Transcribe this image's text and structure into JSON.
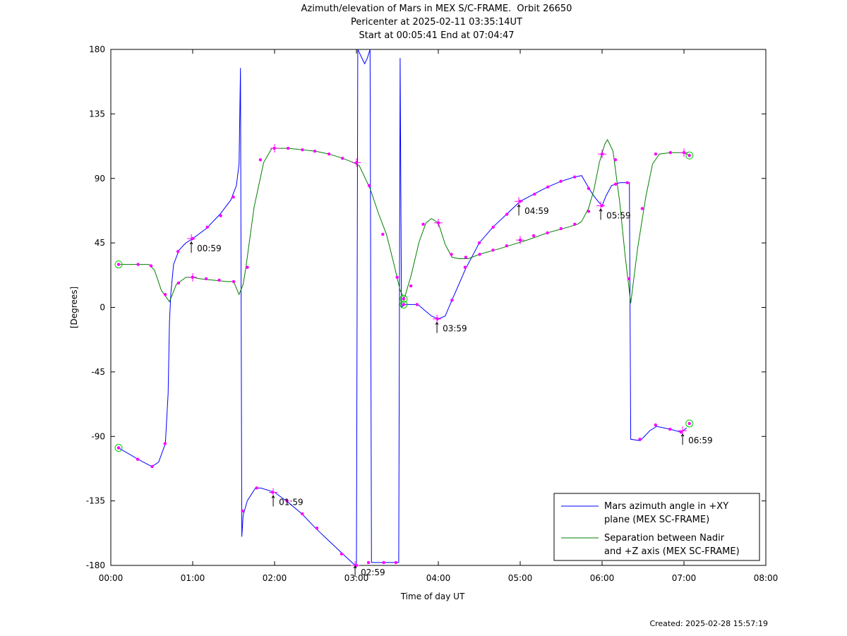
{
  "chart_data": {
    "type": "line",
    "title_lines": [
      "Azimuth/elevation of Mars in MEX S/C-FRAME.  Orbit 26650",
      "Pericenter at 2025-02-11 03:35:14UT",
      "Start at 00:05:41 End at 07:04:47"
    ],
    "xlabel": "Time of day UT",
    "ylabel": "[Degrees]",
    "xlim": [
      0,
      480
    ],
    "ylim": [
      -180,
      180
    ],
    "x_ticks": [
      {
        "v": 0,
        "label": "00:00"
      },
      {
        "v": 60,
        "label": "01:00"
      },
      {
        "v": 120,
        "label": "02:00"
      },
      {
        "v": 180,
        "label": "03:00"
      },
      {
        "v": 240,
        "label": "04:00"
      },
      {
        "v": 300,
        "label": "05:00"
      },
      {
        "v": 360,
        "label": "06:00"
      },
      {
        "v": 420,
        "label": "07:00"
      },
      {
        "v": 480,
        "label": "08:00"
      }
    ],
    "y_ticks": [
      {
        "v": 180,
        "label": "180"
      },
      {
        "v": 135,
        "label": "135"
      },
      {
        "v": 90,
        "label": "90"
      },
      {
        "v": 45,
        "label": "45"
      },
      {
        "v": 0,
        "label": "0"
      },
      {
        "v": -45,
        "label": "-45"
      },
      {
        "v": -90,
        "label": "-90"
      },
      {
        "v": -135,
        "label": "-135"
      },
      {
        "v": -180,
        "label": "-180"
      }
    ],
    "legend_position": "bottom-right",
    "series": [
      {
        "name": "Mars azimuth angle in +XY plane (MEX SC-FRAME)",
        "legend_lines": [
          "Mars azimuth angle in +XY",
          "plane (MEX SC-FRAME)"
        ],
        "color": "#0000ff",
        "points": [
          [
            5.7,
            -98
          ],
          [
            20,
            -106
          ],
          [
            30,
            -111
          ],
          [
            35,
            -108
          ],
          [
            40,
            -95
          ],
          [
            42,
            -60
          ],
          [
            43,
            -10
          ],
          [
            44,
            10
          ],
          [
            46,
            30
          ],
          [
            50,
            40
          ],
          [
            55,
            45
          ],
          [
            60,
            48
          ],
          [
            70,
            55
          ],
          [
            80,
            65
          ],
          [
            88,
            75
          ],
          [
            92,
            85
          ],
          [
            94,
            100
          ],
          [
            95,
            167
          ],
          [
            96,
            -160
          ],
          [
            97,
            -145
          ],
          [
            100,
            -135
          ],
          [
            106,
            -126
          ],
          [
            110,
            -126
          ],
          [
            120,
            -129
          ],
          [
            130,
            -136
          ],
          [
            140,
            -144
          ],
          [
            150,
            -154
          ],
          [
            160,
            -163
          ],
          [
            170,
            -172
          ],
          [
            179,
            -180
          ],
          [
            180,
            -180
          ],
          [
            181,
            180
          ],
          [
            186,
            170
          ],
          [
            188,
            174
          ],
          [
            190,
            180
          ],
          [
            191,
            -178
          ],
          [
            200,
            -178
          ],
          [
            211,
            -178
          ],
          [
            212,
            174
          ],
          [
            213,
            0
          ],
          [
            215,
            2
          ],
          [
            225,
            2
          ],
          [
            230,
            -2
          ],
          [
            235,
            -6
          ],
          [
            240,
            -8
          ],
          [
            245,
            -6
          ],
          [
            250,
            5
          ],
          [
            260,
            27
          ],
          [
            270,
            45
          ],
          [
            280,
            56
          ],
          [
            290,
            65
          ],
          [
            300,
            74
          ],
          [
            310,
            79
          ],
          [
            320,
            84
          ],
          [
            330,
            88
          ],
          [
            340,
            91
          ],
          [
            345,
            92
          ],
          [
            348,
            87
          ],
          [
            353,
            79
          ],
          [
            357,
            74
          ],
          [
            360,
            71
          ],
          [
            363,
            78
          ],
          [
            367,
            85
          ],
          [
            373,
            87
          ],
          [
            380,
            87
          ],
          [
            381,
            -92
          ],
          [
            388,
            -93
          ],
          [
            395,
            -86
          ],
          [
            400,
            -83
          ],
          [
            410,
            -85
          ],
          [
            418,
            -87
          ],
          [
            422,
            -84
          ]
        ],
        "markers": [
          [
            5.7,
            -98
          ],
          [
            19.7,
            -106
          ],
          [
            30.3,
            -111
          ],
          [
            39.7,
            -95
          ],
          [
            49.2,
            39
          ],
          [
            59.9,
            48
          ],
          [
            70.7,
            56
          ],
          [
            80.5,
            64
          ],
          [
            89.8,
            77
          ],
          [
            96.5,
            -142
          ],
          [
            106.9,
            -126
          ],
          [
            118.5,
            -129
          ],
          [
            129.2,
            -135
          ],
          [
            140.3,
            -144
          ],
          [
            151,
            -154
          ],
          [
            169.1,
            -172
          ],
          [
            180,
            -180
          ],
          [
            188.8,
            -178
          ],
          [
            200,
            -178
          ],
          [
            208.9,
            -178
          ],
          [
            214.6,
            2
          ],
          [
            224.4,
            2
          ],
          [
            239.4,
            -8
          ],
          [
            250,
            5
          ],
          [
            259.6,
            28
          ],
          [
            270,
            45
          ],
          [
            280.2,
            56
          ],
          [
            290.3,
            65
          ],
          [
            300,
            74
          ],
          [
            310.5,
            79
          ],
          [
            320.2,
            84
          ],
          [
            329.8,
            88
          ],
          [
            339.9,
            91
          ],
          [
            350.1,
            83
          ],
          [
            360,
            71
          ],
          [
            369.9,
            86
          ],
          [
            378.5,
            87
          ],
          [
            387.7,
            -92
          ],
          [
            399.2,
            -82
          ],
          [
            409.8,
            -85
          ],
          [
            417.8,
            -87
          ]
        ]
      },
      {
        "name": "Separation between Nadir and +Z axis (MEX SC-FRAME)",
        "legend_lines": [
          "Separation between Nadir",
          "and +Z axis (MEX SC-FRAME)"
        ],
        "color": "#007f00",
        "points": [
          [
            5.7,
            30
          ],
          [
            20,
            30
          ],
          [
            28,
            30
          ],
          [
            32,
            26
          ],
          [
            37,
            12
          ],
          [
            43,
            4
          ],
          [
            48,
            16
          ],
          [
            55,
            21
          ],
          [
            60,
            21
          ],
          [
            65,
            20
          ],
          [
            75,
            19
          ],
          [
            85,
            18
          ],
          [
            90,
            18
          ],
          [
            94,
            9
          ],
          [
            97,
            16
          ],
          [
            99,
            28
          ],
          [
            105,
            70
          ],
          [
            112,
            101
          ],
          [
            118,
            111
          ],
          [
            130,
            111
          ],
          [
            140,
            110
          ],
          [
            150,
            109
          ],
          [
            160,
            107
          ],
          [
            170,
            104
          ],
          [
            178,
            101
          ],
          [
            182,
            99
          ],
          [
            190,
            83
          ],
          [
            196,
            66
          ],
          [
            202,
            51
          ],
          [
            207,
            32
          ],
          [
            212,
            12
          ],
          [
            215,
            6
          ],
          [
            220,
            22
          ],
          [
            226,
            46
          ],
          [
            231,
            59
          ],
          [
            235,
            62
          ],
          [
            240,
            59
          ],
          [
            245,
            44
          ],
          [
            250,
            35
          ],
          [
            255,
            34
          ],
          [
            262,
            34
          ],
          [
            270,
            37
          ],
          [
            285,
            41
          ],
          [
            295,
            44
          ],
          [
            305,
            47
          ],
          [
            320,
            52
          ],
          [
            335,
            56
          ],
          [
            342,
            58
          ],
          [
            345,
            60
          ],
          [
            350,
            69
          ],
          [
            354,
            82
          ],
          [
            358,
            101
          ],
          [
            362,
            114
          ],
          [
            364,
            117
          ],
          [
            368,
            109
          ],
          [
            373,
            73
          ],
          [
            377,
            35
          ],
          [
            381,
            3
          ],
          [
            386,
            41
          ],
          [
            392,
            77
          ],
          [
            397,
            100
          ],
          [
            402,
            107
          ],
          [
            410,
            108
          ],
          [
            420,
            108
          ],
          [
            424,
            106
          ]
        ],
        "markers": [
          [
            5.7,
            30
          ],
          [
            20,
            30
          ],
          [
            29.5,
            29
          ],
          [
            39.9,
            9
          ],
          [
            49.6,
            17
          ],
          [
            59.9,
            21
          ],
          [
            69.9,
            20
          ],
          [
            79.4,
            19
          ],
          [
            90,
            18
          ],
          [
            100.1,
            28
          ],
          [
            109.6,
            103
          ],
          [
            119.8,
            111
          ],
          [
            129.9,
            111
          ],
          [
            140.4,
            110
          ],
          [
            149.5,
            109
          ],
          [
            159.9,
            107
          ],
          [
            169.8,
            104
          ],
          [
            180.1,
            101
          ],
          [
            189.3,
            85
          ],
          [
            199.3,
            51
          ],
          [
            209.8,
            21
          ],
          [
            219.9,
            15
          ],
          [
            228.9,
            58
          ],
          [
            240,
            59
          ],
          [
            249.6,
            37
          ],
          [
            260.1,
            35
          ],
          [
            270.3,
            37
          ],
          [
            280.1,
            40
          ],
          [
            290.1,
            43
          ],
          [
            300,
            47
          ],
          [
            309.9,
            50
          ],
          [
            320,
            52
          ],
          [
            329.9,
            55
          ],
          [
            340,
            58
          ],
          [
            350.2,
            67
          ],
          [
            360,
            107
          ],
          [
            369.8,
            103
          ],
          [
            379.7,
            20
          ],
          [
            389.4,
            69
          ],
          [
            399.3,
            107
          ],
          [
            410.1,
            108
          ],
          [
            420,
            108
          ]
        ]
      }
    ],
    "tick_annotations": [
      {
        "label": "00:59",
        "x": 59,
        "y": 48
      },
      {
        "label": "01:59",
        "x": 119,
        "y": -129
      },
      {
        "label": "02:59",
        "x": 179,
        "y": -178
      },
      {
        "label": "03:59",
        "x": 239,
        "y": -8
      },
      {
        "label": "04:59",
        "x": 299,
        "y": 74
      },
      {
        "label": "05:59",
        "x": 359,
        "y": 71
      },
      {
        "label": "06:59",
        "x": 419,
        "y": -86
      }
    ],
    "hour_crosses": [
      [
        59,
        48
      ],
      [
        119,
        -129
      ],
      [
        179,
        -180
      ],
      [
        239,
        -8
      ],
      [
        299,
        74
      ],
      [
        359,
        71
      ],
      [
        419,
        -86
      ],
      [
        60,
        21
      ],
      [
        120,
        111
      ],
      [
        180,
        101
      ],
      [
        240,
        59
      ],
      [
        300,
        47
      ],
      [
        360,
        107
      ],
      [
        420,
        108
      ]
    ],
    "endpoint_circles": [
      [
        5.7,
        -98
      ],
      [
        5.7,
        30
      ],
      [
        214.6,
        6
      ],
      [
        214.6,
        2
      ],
      [
        424,
        -81
      ],
      [
        424,
        106
      ]
    ],
    "colors": {
      "marker": "#ff00ff",
      "circle": "#00cc00",
      "axis": "#000000"
    }
  },
  "footer": {
    "created": "Created: 2025-02-28 15:57:19"
  }
}
